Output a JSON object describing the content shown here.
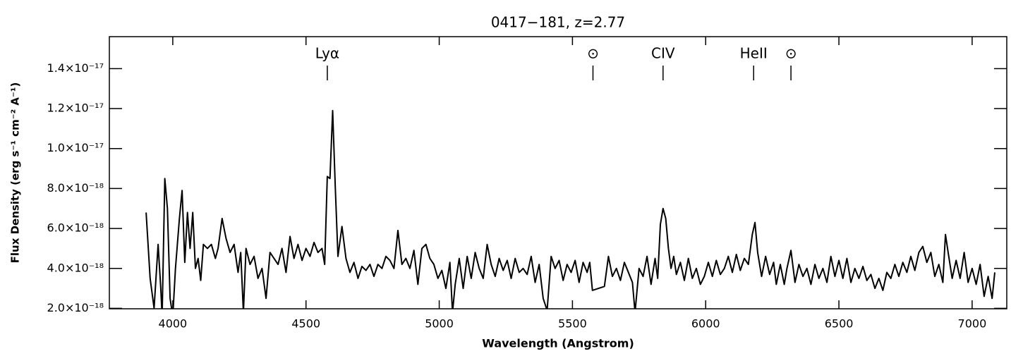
{
  "chart_data": {
    "type": "line",
    "title": "0417−181, z=2.77",
    "xlabel": "Wavelength (Angstrom)",
    "ylabel": "Flux Density (erg s⁻¹ cm⁻² A⁻¹)",
    "color": "#000000",
    "xlim": [
      3762,
      7130
    ],
    "ylim": [
      1.98e-18,
      1.56e-17
    ],
    "xticks": [
      4000,
      4500,
      5000,
      5500,
      6000,
      6500,
      7000
    ],
    "yticks": [
      {
        "value": 2e-18,
        "label": "2.0×10⁻¹⁸"
      },
      {
        "value": 4e-18,
        "label": "4.0×10⁻¹⁸"
      },
      {
        "value": 6e-18,
        "label": "6.0×10⁻¹⁸"
      },
      {
        "value": 8e-18,
        "label": "8.0×10⁻¹⁸"
      },
      {
        "value": 1e-17,
        "label": "1.0×10⁻¹⁷"
      },
      {
        "value": 1.2e-17,
        "label": "1.2×10⁻¹⁷"
      },
      {
        "value": 1.4e-17,
        "label": "1.4×10⁻¹⁷"
      }
    ],
    "annotations": [
      {
        "text": "Lyα",
        "x": 4580
      },
      {
        "text": "⊙",
        "x": 5577
      },
      {
        "text": "CIV",
        "x": 5840
      },
      {
        "text": "HeII",
        "x": 6180
      },
      {
        "text": "⊙",
        "x": 6320
      }
    ],
    "x": [
      3900,
      3915,
      3930,
      3945,
      3955,
      3960,
      3970,
      3980,
      3990,
      4000,
      4010,
      4025,
      4035,
      4045,
      4055,
      4065,
      4075,
      4085,
      4095,
      4105,
      4115,
      4130,
      4145,
      4160,
      4170,
      4185,
      4200,
      4215,
      4230,
      4245,
      4255,
      4265,
      4275,
      4290,
      4305,
      4320,
      4335,
      4350,
      4365,
      4380,
      4395,
      4410,
      4425,
      4440,
      4455,
      4470,
      4485,
      4500,
      4515,
      4530,
      4545,
      4560,
      4570,
      4580,
      4590,
      4600,
      4610,
      4620,
      4635,
      4650,
      4665,
      4680,
      4695,
      4710,
      4725,
      4740,
      4755,
      4770,
      4785,
      4800,
      4815,
      4830,
      4845,
      4860,
      4875,
      4890,
      4905,
      4920,
      4935,
      4950,
      4965,
      4980,
      4995,
      5010,
      5025,
      5040,
      5050,
      5060,
      5075,
      5090,
      5105,
      5120,
      5135,
      5150,
      5165,
      5180,
      5195,
      5210,
      5225,
      5240,
      5255,
      5270,
      5285,
      5300,
      5315,
      5330,
      5345,
      5360,
      5375,
      5390,
      5405,
      5420,
      5435,
      5450,
      5465,
      5480,
      5495,
      5510,
      5525,
      5540,
      5555,
      5565,
      5575,
      5620,
      5635,
      5650,
      5665,
      5680,
      5695,
      5710,
      5725,
      5735,
      5750,
      5765,
      5780,
      5795,
      5810,
      5820,
      5830,
      5840,
      5850,
      5860,
      5870,
      5880,
      5890,
      5905,
      5920,
      5935,
      5950,
      5965,
      5980,
      5995,
      6010,
      6025,
      6040,
      6055,
      6070,
      6085,
      6100,
      6115,
      6130,
      6145,
      6160,
      6175,
      6185,
      6195,
      6210,
      6225,
      6240,
      6255,
      6265,
      6280,
      6295,
      6305,
      6320,
      6335,
      6350,
      6365,
      6380,
      6395,
      6410,
      6425,
      6440,
      6455,
      6470,
      6485,
      6500,
      6515,
      6530,
      6545,
      6560,
      6575,
      6590,
      6605,
      6620,
      6635,
      6650,
      6665,
      6680,
      6695,
      6710,
      6725,
      6740,
      6755,
      6770,
      6785,
      6800,
      6815,
      6830,
      6845,
      6860,
      6875,
      6890,
      6900,
      6910,
      6925,
      6940,
      6955,
      6970,
      6985,
      7000,
      7015,
      7030,
      7045,
      7060,
      7075,
      7085
    ],
    "values": [
      6.8e-18,
      3.5e-18,
      2e-18,
      5.2e-18,
      3e-18,
      1.6e-18,
      8.5e-18,
      7e-18,
      2.5e-18,
      1.6e-18,
      4e-18,
      6.5e-18,
      7.9e-18,
      4.3e-18,
      6.8e-18,
      5e-18,
      6.8e-18,
      4e-18,
      4.5e-18,
      3.4e-18,
      5.2e-18,
      5e-18,
      5.2e-18,
      4.5e-18,
      5e-18,
      6.5e-18,
      5.5e-18,
      4.8e-18,
      5.2e-18,
      3.8e-18,
      4.8e-18,
      1.8e-18,
      5e-18,
      4.2e-18,
      4.6e-18,
      3.5e-18,
      4e-18,
      2.5e-18,
      4.8e-18,
      4.5e-18,
      4.2e-18,
      5e-18,
      3.8e-18,
      5.6e-18,
      4.5e-18,
      5.2e-18,
      4.4e-18,
      5e-18,
      4.6e-18,
      5.3e-18,
      4.8e-18,
      5e-18,
      4.2e-18,
      8.6e-18,
      8.5e-18,
      1.19e-17,
      8e-18,
      4.6e-18,
      6.1e-18,
      4.5e-18,
      3.8e-18,
      4.3e-18,
      3.5e-18,
      4.1e-18,
      3.9e-18,
      4.2e-18,
      3.6e-18,
      4.2e-18,
      4e-18,
      4.6e-18,
      4.4e-18,
      4e-18,
      5.9e-18,
      4.2e-18,
      4.5e-18,
      4e-18,
      4.9e-18,
      3.2e-18,
      5e-18,
      5.2e-18,
      4.5e-18,
      4.2e-18,
      3.5e-18,
      3.9e-18,
      3e-18,
      4.3e-18,
      1.8e-18,
      3.2e-18,
      4.5e-18,
      3e-18,
      4.6e-18,
      3.5e-18,
      4.8e-18,
      4e-18,
      3.5e-18,
      5.2e-18,
      4.2e-18,
      3.6e-18,
      4.5e-18,
      3.9e-18,
      4.4e-18,
      3.5e-18,
      4.5e-18,
      3.8e-18,
      4e-18,
      3.7e-18,
      4.6e-18,
      3.3e-18,
      4.2e-18,
      2.5e-18,
      1.9e-18,
      4.6e-18,
      4e-18,
      4.4e-18,
      3.4e-18,
      4.2e-18,
      3.8e-18,
      4.4e-18,
      3.3e-18,
      4.3e-18,
      3.8e-18,
      4.3e-18,
      2.9e-18,
      3.1e-18,
      4.6e-18,
      3.6e-18,
      4e-18,
      3.4e-18,
      4.3e-18,
      3.8e-18,
      3.3e-18,
      1.8e-18,
      4e-18,
      3.6e-18,
      4.6e-18,
      3.2e-18,
      4.5e-18,
      3.5e-18,
      6.2e-18,
      7e-18,
      6.5e-18,
      5e-18,
      4e-18,
      4.6e-18,
      3.7e-18,
      4.3e-18,
      3.4e-18,
      4.5e-18,
      3.5e-18,
      4e-18,
      3.2e-18,
      3.6e-18,
      4.3e-18,
      3.6e-18,
      4.4e-18,
      3.7e-18,
      4e-18,
      4.6e-18,
      3.8e-18,
      4.7e-18,
      3.9e-18,
      4.5e-18,
      4.2e-18,
      5.7e-18,
      6.3e-18,
      4.8e-18,
      3.6e-18,
      4.6e-18,
      3.7e-18,
      4.3e-18,
      3.2e-18,
      4.2e-18,
      3.2e-18,
      4e-18,
      4.9e-18,
      3.3e-18,
      4.2e-18,
      3.6e-18,
      4e-18,
      3.2e-18,
      4.2e-18,
      3.5e-18,
      4e-18,
      3.3e-18,
      4.6e-18,
      3.6e-18,
      4.4e-18,
      3.5e-18,
      4.5e-18,
      3.3e-18,
      4e-18,
      3.5e-18,
      4.1e-18,
      3.4e-18,
      3.7e-18,
      3e-18,
      3.5e-18,
      2.9e-18,
      3.8e-18,
      3.5e-18,
      4.2e-18,
      3.6e-18,
      4.3e-18,
      3.8e-18,
      4.6e-18,
      3.9e-18,
      4.8e-18,
      5.1e-18,
      4.3e-18,
      4.8e-18,
      3.6e-18,
      4.2e-18,
      3.3e-18,
      5.7e-18,
      4.8e-18,
      3.5e-18,
      4.4e-18,
      3.5e-18,
      4.8e-18,
      3.3e-18,
      4e-18,
      3.2e-18,
      4.2e-18,
      2.6e-18,
      3.6e-18,
      2.5e-18,
      3.8e-18
    ]
  }
}
